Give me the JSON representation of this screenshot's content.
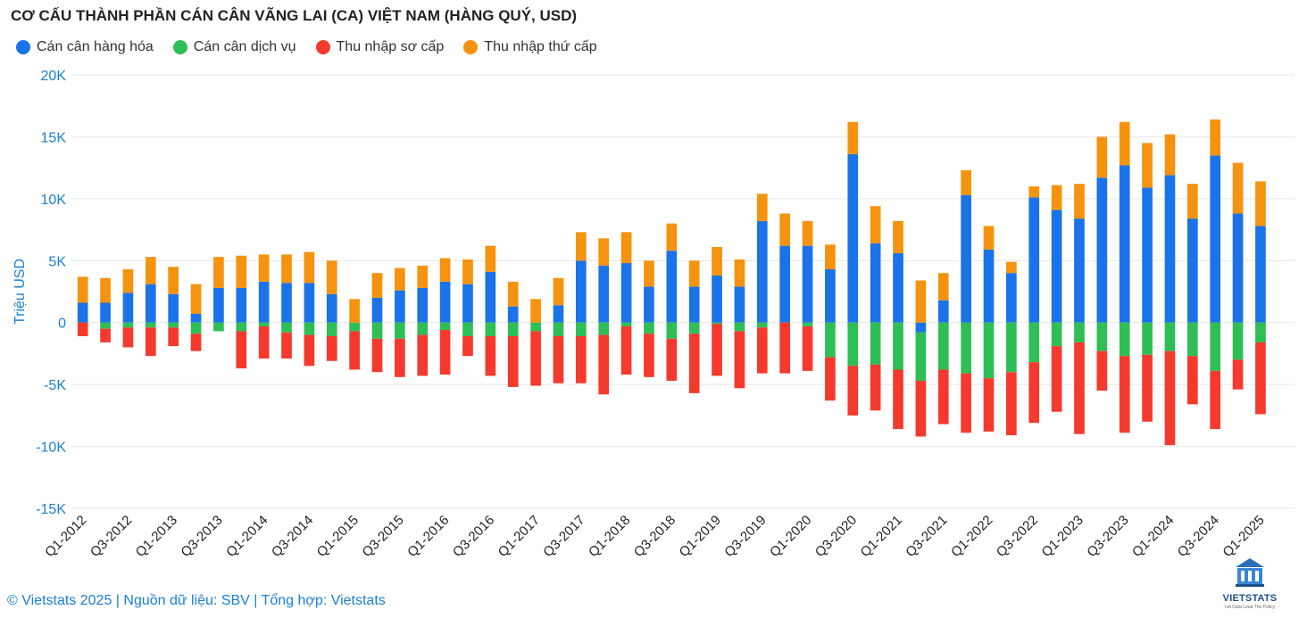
{
  "title": "CƠ CẤU THÀNH PHẦN CÁN CÂN VÃNG LAI (CA) VIỆT NAM (HÀNG QUÝ, USD)",
  "legend": [
    {
      "name": "Cán cân hàng hóa",
      "color": "#1a73e8"
    },
    {
      "name": "Cán cân dịch vụ",
      "color": "#2dbf55"
    },
    {
      "name": "Thu nhập sơ cấp",
      "color": "#f5392c"
    },
    {
      "name": "Thu nhập thứ cấp",
      "color": "#f5930e"
    }
  ],
  "footer": "© Vietstats 2025 | Nguồn dữ liệu: SBV | Tổng hợp: Vietstats",
  "logo": {
    "name": "VIETSTATS",
    "tagline": "Let Data Lead The Policy",
    "icon": "building-chart-logo-icon"
  },
  "chart_data": {
    "type": "bar",
    "stacked": true,
    "ylabel": "Triệu USD",
    "ylim": [
      -15000,
      20000
    ],
    "yticks": [
      20000,
      15000,
      10000,
      5000,
      0,
      -5000,
      -10000,
      -15000
    ],
    "ytick_labels": [
      "20K",
      "15K",
      "10K",
      "5K",
      "0",
      "-5K",
      "-10K",
      "-15K"
    ],
    "grid": true,
    "legend_position": "top-left",
    "categories": [
      "Q1-2012",
      "Q2-2012",
      "Q3-2012",
      "Q4-2012",
      "Q1-2013",
      "Q2-2013",
      "Q3-2013",
      "Q4-2013",
      "Q1-2014",
      "Q2-2014",
      "Q3-2014",
      "Q4-2014",
      "Q1-2015",
      "Q2-2015",
      "Q3-2015",
      "Q4-2015",
      "Q1-2016",
      "Q2-2016",
      "Q3-2016",
      "Q4-2016",
      "Q1-2017",
      "Q2-2017",
      "Q3-2017",
      "Q4-2017",
      "Q1-2018",
      "Q2-2018",
      "Q3-2018",
      "Q4-2018",
      "Q1-2019",
      "Q2-2019",
      "Q3-2019",
      "Q4-2019",
      "Q1-2020",
      "Q2-2020",
      "Q3-2020",
      "Q4-2020",
      "Q1-2021",
      "Q2-2021",
      "Q3-2021",
      "Q4-2021",
      "Q1-2022",
      "Q2-2022",
      "Q3-2022",
      "Q4-2022",
      "Q1-2023",
      "Q2-2023",
      "Q3-2023",
      "Q4-2023",
      "Q1-2024",
      "Q2-2024",
      "Q3-2024",
      "Q4-2024",
      "Q1-2025",
      "Q2-2025"
    ],
    "x_tick_labels": [
      "Q1-2012",
      "Q3-2012",
      "Q1-2013",
      "Q3-2013",
      "Q1-2014",
      "Q3-2014",
      "Q1-2015",
      "Q3-2015",
      "Q1-2016",
      "Q3-2016",
      "Q1-2017",
      "Q3-2017",
      "Q1-2018",
      "Q3-2018",
      "Q1-2019",
      "Q3-2019",
      "Q1-2020",
      "Q3-2020",
      "Q1-2021",
      "Q3-2021",
      "Q1-2022",
      "Q3-2022",
      "Q1-2023",
      "Q3-2023",
      "Q1-2024",
      "Q3-2024",
      "Q1-2025"
    ],
    "series": [
      {
        "name": "Cán cân hàng hóa",
        "color": "#1a73e8",
        "values": [
          1600,
          1600,
          2400,
          3100,
          2300,
          700,
          2800,
          2800,
          3300,
          3200,
          3200,
          2300,
          0,
          2000,
          2600,
          2800,
          3300,
          3100,
          4100,
          1300,
          0,
          1400,
          5000,
          4600,
          4800,
          2900,
          5800,
          2900,
          3800,
          2900,
          8200,
          6200,
          6200,
          4300,
          13600,
          6400,
          5600,
          -800,
          1800,
          10300,
          5900,
          4000,
          10100,
          9100,
          8400,
          11700,
          12700,
          10900,
          11900,
          8400,
          13500,
          8800,
          7800,
          0
        ]
      },
      {
        "name": "Cán cân dịch vụ",
        "color": "#2dbf55",
        "values": [
          0,
          -500,
          -400,
          -400,
          -400,
          -900,
          -700,
          -700,
          -300,
          -800,
          -1000,
          -1100,
          -700,
          -1300,
          -1300,
          -1000,
          -600,
          -1100,
          -1100,
          -1100,
          -700,
          -1100,
          -1100,
          -1000,
          -300,
          -900,
          -1300,
          -900,
          -100,
          -700,
          -400,
          0,
          -300,
          -2800,
          -3500,
          -3400,
          -3800,
          -3900,
          -3800,
          -4100,
          -4500,
          -4000,
          -3200,
          -1900,
          -1600,
          -2300,
          -2700,
          -2600,
          -2300,
          -2700,
          -3900,
          -3000,
          -1600,
          0
        ]
      },
      {
        "name": "Thu nhập sơ cấp",
        "color": "#f5392c",
        "values": [
          -1100,
          -1100,
          -1600,
          -2300,
          -1500,
          -1400,
          0,
          -3000,
          -2600,
          -2100,
          -2500,
          -2000,
          -3100,
          -2700,
          -3100,
          -3300,
          -3600,
          -1600,
          -3200,
          -4100,
          -4400,
          -3800,
          -3800,
          -4800,
          -3900,
          -3500,
          -3400,
          -4800,
          -4200,
          -4600,
          -3700,
          -4100,
          -3600,
          -3500,
          -4000,
          -3700,
          -4800,
          -4500,
          -4400,
          -4800,
          -4300,
          -5100,
          -4900,
          -5300,
          -7400,
          -3200,
          -6200,
          -5400,
          -7600,
          -3900,
          -4700,
          -2400,
          -5800,
          0
        ]
      },
      {
        "name": "Thu nhập thứ cấp",
        "color": "#f5930e",
        "values": [
          2100,
          2000,
          1900,
          2200,
          2200,
          2400,
          2500,
          2600,
          2200,
          2300,
          2500,
          2700,
          1900,
          2000,
          1800,
          1800,
          1900,
          2000,
          2100,
          2000,
          1900,
          2200,
          2300,
          2200,
          2500,
          2100,
          2200,
          2100,
          2300,
          2200,
          2200,
          2600,
          2000,
          2000,
          2600,
          3000,
          2600,
          3400,
          2200,
          2000,
          1900,
          900,
          900,
          2000,
          2800,
          3300,
          3500,
          3600,
          3300,
          2800,
          2900,
          4100,
          3600,
          0
        ]
      }
    ]
  }
}
